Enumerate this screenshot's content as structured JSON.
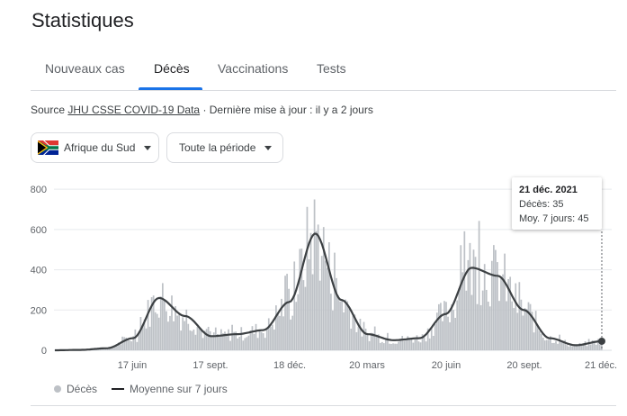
{
  "title": "Statistiques",
  "tabs": [
    {
      "label": "Nouveaux cas"
    },
    {
      "label": "Décès"
    },
    {
      "label": "Vaccinations"
    },
    {
      "label": "Tests"
    }
  ],
  "source": {
    "prefix": "Source",
    "link": "JHU CSSE COVID-19 Data",
    "suffix": "· Dernière mise à jour : il y a 2 jours"
  },
  "filters": {
    "country": "Afrique du Sud",
    "period": "Toute la période"
  },
  "tooltip": {
    "date": "21 déc. 2021",
    "deaths": "Décès: 35",
    "avg": "Moy. 7 jours: 45"
  },
  "legend": {
    "deaths": "Décès",
    "avg": "Moyenne sur 7 jours"
  },
  "colors": {
    "bars": "#bdc1c6",
    "line": "#3c4043",
    "accent": "#1a73e8"
  },
  "chart_data": {
    "type": "bar",
    "ylim": [
      0,
      850
    ],
    "yticks": [
      0,
      200,
      400,
      600,
      800
    ],
    "xtick_labels": [
      "17 juin",
      "17 sept.",
      "18 déc.",
      "20 mars",
      "20 juin",
      "20 sept.",
      "21 déc."
    ],
    "series": [
      {
        "name": "Décès",
        "type": "bar"
      },
      {
        "name": "Moyenne sur 7 jours",
        "type": "line"
      }
    ],
    "x": [
      "2020-03",
      "2020-04",
      "2020-05",
      "2020-06",
      "2020-07",
      "2020-08",
      "2020-09",
      "2020-10",
      "2020-11",
      "2020-12",
      "2021-01",
      "2021-02",
      "2021-03",
      "2021-04",
      "2021-05",
      "2021-06",
      "2021-07",
      "2021-08",
      "2021-09",
      "2021-10",
      "2021-11",
      "2021-12"
    ],
    "deaths_avg_7d": [
      0,
      2,
      10,
      60,
      260,
      170,
      70,
      80,
      100,
      240,
      580,
      250,
      80,
      50,
      60,
      180,
      410,
      370,
      200,
      60,
      25,
      45
    ],
    "last_point": {
      "date": "21 déc. 2021",
      "deaths": 35,
      "avg_7d": 45
    }
  }
}
